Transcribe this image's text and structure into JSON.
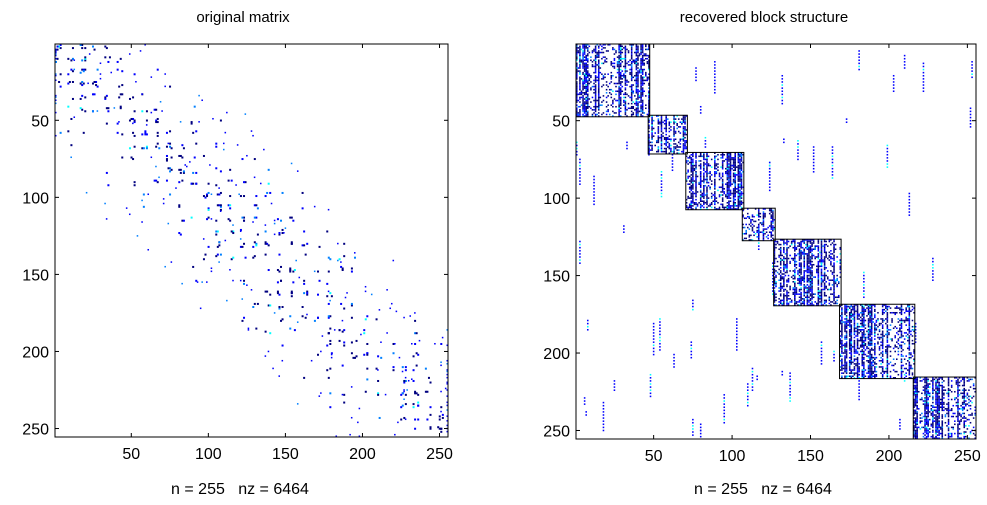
{
  "chart_data": [
    {
      "type": "heatmap",
      "title": "original matrix",
      "xlabel": "n = 255   nz = 6464",
      "ylabel": "",
      "n": 255,
      "nz": 6464,
      "xlim": [
        1,
        255
      ],
      "ylim": [
        255,
        1
      ],
      "x_ticks": [
        50,
        100,
        150,
        200,
        250
      ],
      "y_ticks": [
        50,
        100,
        150,
        200,
        250
      ],
      "colormap": [
        "#00007f",
        "#0000ff",
        "#0080ff",
        "#00ffff",
        "#80ff80"
      ],
      "pattern": "banded-diagonal",
      "bands": [
        {
          "from": 1,
          "to": 90,
          "center_offset": 0
        },
        {
          "from": 95,
          "to": 190,
          "center_offset": 0
        },
        {
          "from": 170,
          "to": 255,
          "center_offset": 0
        }
      ]
    },
    {
      "type": "heatmap",
      "title": "recovered block structure",
      "xlabel": "n = 255   nz = 6464",
      "ylabel": "",
      "n": 255,
      "nz": 6464,
      "xlim": [
        1,
        255
      ],
      "ylim": [
        255,
        1
      ],
      "x_ticks": [
        50,
        100,
        150,
        200,
        250
      ],
      "y_ticks": [
        50,
        100,
        150,
        200,
        250
      ],
      "colormap": [
        "#00007f",
        "#0000ff",
        "#0080ff",
        "#00ffff",
        "#80ff80"
      ],
      "block_boundaries": [
        1,
        47,
        71,
        107,
        127,
        169,
        216,
        255
      ]
    }
  ]
}
